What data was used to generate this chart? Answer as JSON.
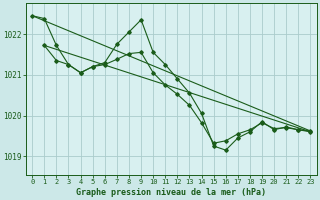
{
  "bg_color": "#cce8e8",
  "plot_bg_color": "#d8f0f0",
  "grid_color": "#aacccc",
  "line_color": "#1a5c1a",
  "title": "Graphe pression niveau de la mer (hPa)",
  "xlim": [
    -0.5,
    23.5
  ],
  "ylim": [
    1018.55,
    1022.75
  ],
  "yticks": [
    1019,
    1020,
    1021,
    1022
  ],
  "xticks": [
    0,
    1,
    2,
    3,
    4,
    5,
    6,
    7,
    8,
    9,
    10,
    11,
    12,
    13,
    14,
    15,
    16,
    17,
    18,
    19,
    20,
    21,
    22,
    23
  ],
  "series1_x": [
    0,
    1,
    2,
    3,
    4,
    5,
    6,
    7,
    8,
    9,
    10,
    11,
    12,
    13,
    14,
    15,
    16,
    17,
    18,
    19,
    20,
    21,
    22,
    23
  ],
  "series1_y": [
    1022.45,
    1022.38,
    1021.72,
    1021.25,
    1021.05,
    1021.2,
    1021.3,
    1021.75,
    1022.05,
    1022.35,
    1021.55,
    1021.25,
    1020.9,
    1020.55,
    1020.05,
    1019.25,
    1019.15,
    1019.45,
    1019.6,
    1019.85,
    1019.65,
    1019.72,
    1019.65,
    1019.62
  ],
  "series2_x": [
    0,
    23
  ],
  "series2_y": [
    1022.45,
    1019.62
  ],
  "series3_x": [
    1,
    2,
    3,
    4,
    5,
    6,
    7,
    8,
    9,
    10,
    11,
    12,
    13,
    14,
    15,
    16,
    17,
    18,
    19,
    20,
    21,
    22,
    23
  ],
  "series3_y": [
    1021.72,
    1021.35,
    1021.25,
    1021.05,
    1021.2,
    1021.25,
    1021.38,
    1021.52,
    1021.55,
    1021.05,
    1020.75,
    1020.52,
    1020.25,
    1019.82,
    1019.32,
    1019.38,
    1019.55,
    1019.65,
    1019.82,
    1019.68,
    1019.7,
    1019.65,
    1019.6
  ],
  "series4_x": [
    1,
    23
  ],
  "series4_y": [
    1021.72,
    1019.6
  ]
}
